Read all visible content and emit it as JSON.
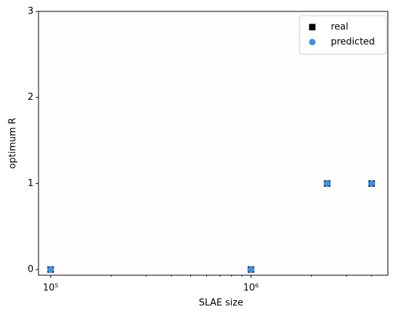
{
  "chart_data": {
    "type": "scatter",
    "xlabel": "SLAE size",
    "ylabel": "optimum R",
    "x": [
      100000,
      1000000,
      2400000,
      4000000
    ],
    "series": [
      {
        "name": "real",
        "color": "#000000",
        "marker": "square",
        "values": [
          0,
          0,
          1,
          1
        ]
      },
      {
        "name": "predicted",
        "color": "#3a8fe8",
        "marker": "circle",
        "values": [
          0,
          0,
          1,
          1
        ]
      }
    ],
    "xscale": "log",
    "xlim": [
      87000,
      4820000
    ],
    "xticks": [
      {
        "value": 100000,
        "label": "10⁵"
      },
      {
        "value": 1000000,
        "label": "10⁶"
      }
    ],
    "xminorticks": [
      200000,
      300000,
      400000,
      500000,
      600000,
      700000,
      800000,
      900000,
      2000000,
      3000000,
      4000000
    ],
    "ylim": [
      -0.066,
      3
    ],
    "yticks": [
      0,
      1,
      2,
      3
    ],
    "legend": "upper right"
  }
}
